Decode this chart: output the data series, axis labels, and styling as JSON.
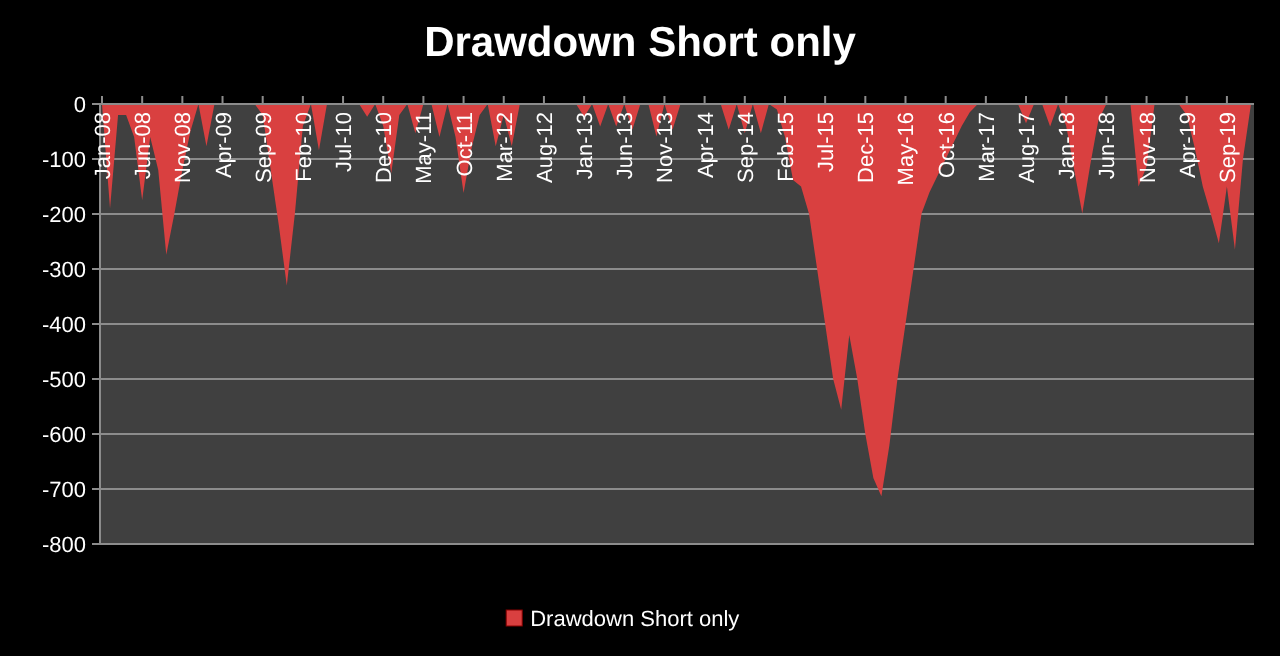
{
  "chart_data": {
    "type": "area",
    "title": "Drawdown Short only",
    "categories": [
      "Jan-08",
      null,
      null,
      null,
      null,
      "Jun-08",
      null,
      null,
      null,
      null,
      "Nov-08",
      null,
      null,
      null,
      null,
      "Apr-09",
      null,
      null,
      null,
      null,
      "Sep-09",
      null,
      null,
      null,
      null,
      "Feb-10",
      null,
      null,
      null,
      null,
      "Jul-10",
      null,
      null,
      null,
      null,
      "Dec-10",
      null,
      null,
      null,
      null,
      "May-11",
      null,
      null,
      null,
      null,
      "Oct-11",
      null,
      null,
      null,
      null,
      "Mar-12",
      null,
      null,
      null,
      null,
      "Aug-12",
      null,
      null,
      null,
      null,
      "Jan-13",
      null,
      null,
      null,
      null,
      "Jun-13",
      null,
      null,
      null,
      null,
      "Nov-13",
      null,
      null,
      null,
      null,
      "Apr-14",
      null,
      null,
      null,
      null,
      "Sep-14",
      null,
      null,
      null,
      null,
      "Feb-15",
      null,
      null,
      null,
      null,
      "Jul-15",
      null,
      null,
      null,
      null,
      "Dec-15",
      null,
      null,
      null,
      null,
      "May-16",
      null,
      null,
      null,
      null,
      "Oct-16",
      null,
      null,
      null,
      null,
      "Mar-17",
      null,
      null,
      null,
      null,
      "Aug-17",
      null,
      null,
      null,
      null,
      "Jan-18",
      null,
      null,
      null,
      null,
      "Jun-18",
      null,
      null,
      null,
      null,
      "Nov-18",
      null,
      null,
      null,
      null,
      "Apr-19",
      null,
      null,
      null,
      null,
      "Sep-19",
      null,
      null,
      null
    ],
    "series": [
      {
        "name": "Drawdown Short only",
        "color": "#d94040",
        "values": [
          0,
          -190,
          -20,
          -20,
          -60,
          -175,
          -60,
          -120,
          -274,
          -200,
          -120,
          -50,
          0,
          -77,
          0,
          0,
          0,
          0,
          0,
          0,
          -20,
          -120,
          -220,
          -330,
          -200,
          -40,
          0,
          -84,
          0,
          0,
          0,
          0,
          0,
          -23,
          0,
          -40,
          -126,
          -20,
          0,
          -53,
          0,
          0,
          -60,
          0,
          -60,
          -162,
          -80,
          -20,
          0,
          -77,
          -20,
          -77,
          0,
          0,
          0,
          0,
          0,
          0,
          0,
          0,
          -23,
          0,
          -41,
          0,
          -41,
          0,
          -47,
          0,
          0,
          -59,
          0,
          -47,
          0,
          0,
          0,
          0,
          0,
          0,
          -47,
          0,
          -53,
          0,
          -53,
          0,
          -10,
          -60,
          -138,
          -150,
          -200,
          -300,
          -400,
          -500,
          -556,
          -420,
          -500,
          -600,
          -680,
          -713,
          -620,
          -500,
          -400,
          -300,
          -199,
          -160,
          -130,
          -100,
          -70,
          -40,
          -15,
          0,
          0,
          0,
          0,
          0,
          0,
          -35,
          0,
          0,
          -41,
          0,
          -40,
          -120,
          -199,
          -110,
          -30,
          0,
          0,
          0,
          0,
          -150,
          -114,
          0,
          0,
          0,
          0,
          -20,
          -80,
          -150,
          -200,
          -253,
          -150,
          -265,
          -100,
          0
        ]
      }
    ],
    "ylim": [
      -800,
      0
    ],
    "yticks": [
      -800,
      -700,
      -600,
      -500,
      -400,
      -300,
      -200,
      -100,
      0
    ],
    "grid": "y",
    "legend": "bottom"
  }
}
